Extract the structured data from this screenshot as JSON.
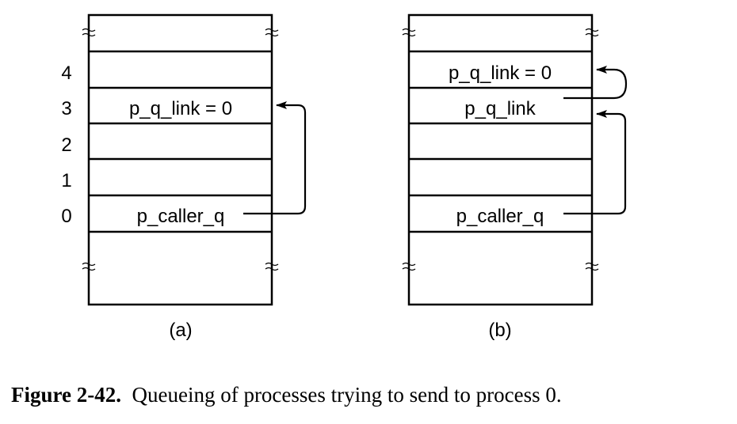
{
  "row_numbers": [
    "4",
    "3",
    "2",
    "1",
    "0"
  ],
  "panel_a": {
    "label": "(a)",
    "cells": {
      "row3": "p_q_link = 0",
      "row0": "p_caller_q"
    }
  },
  "panel_b": {
    "label": "(b)",
    "cells": {
      "row4": "p_q_link = 0",
      "row3": "p_q_link",
      "row0": "p_caller_q"
    }
  },
  "caption": {
    "figure_number": "Figure 2-42.",
    "text": "Queueing of processes trying to send to process 0."
  }
}
